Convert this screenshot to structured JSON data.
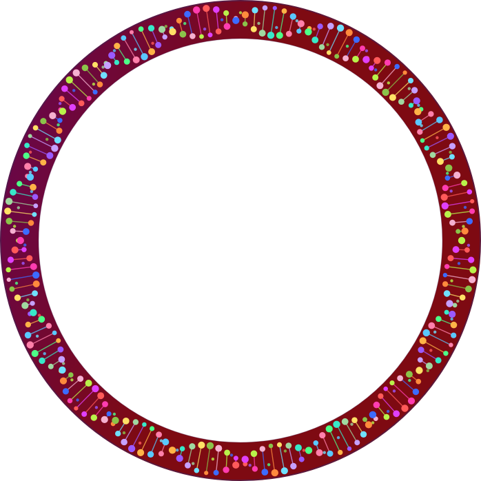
{
  "artwork": {
    "icon": "dna-ring-frame-icon",
    "colors": {
      "background": "#ffffff",
      "ring_outer_edge": "#4a1f4f",
      "ring_purple": "#66064f",
      "ring_red": "#7e0a12",
      "bead_palette": [
        "#ff3db0",
        "#9b59ff",
        "#38e8c8",
        "#b9f24a",
        "#ff8a3d",
        "#5ac8ff",
        "#ffe066",
        "#ff5a5a",
        "#c7a0ff",
        "#4dff88",
        "#f5b0d0",
        "#3d6bff",
        "#ffb347",
        "#a0d8a0",
        "#e040fb",
        "#70e0ff",
        "#ff80ab",
        "#8bc34a"
      ]
    }
  }
}
